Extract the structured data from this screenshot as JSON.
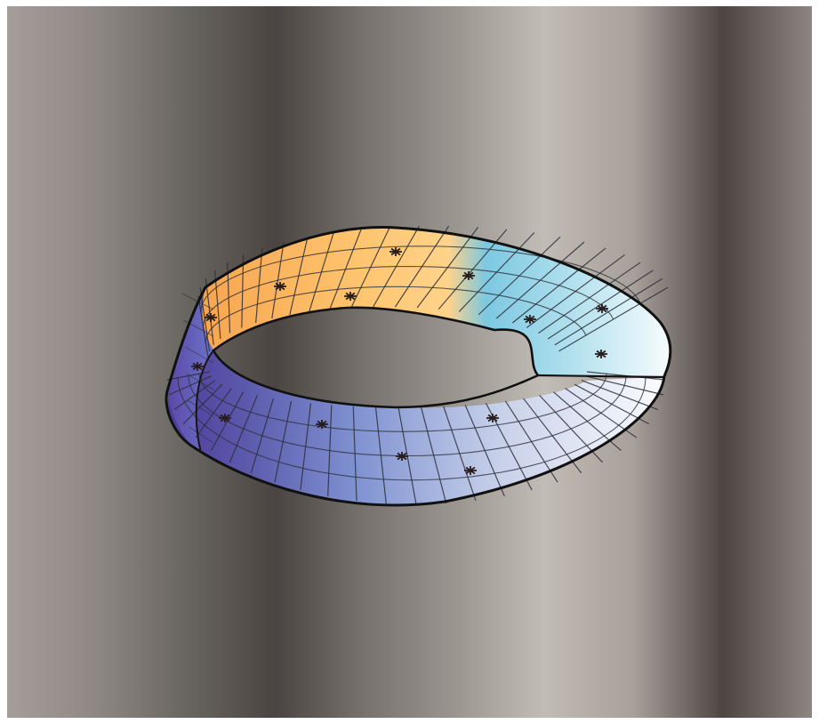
{
  "figure": {
    "subject": "mobius-strip",
    "colors": {
      "backdrop_stops": [
        "#a59d98",
        "#8e8883",
        "#696560",
        "#4a4542",
        "#77726d",
        "#9b9590",
        "#c1bcb5",
        "#a8a09a",
        "#4d4542",
        "#8d8581"
      ],
      "band_inner_orange": "#f4a14f",
      "band_inner_yellow": "#ffc66f",
      "band_inner_cyan": "#7cc8e2",
      "band_inner_light": "#eef7fb",
      "band_outer_violet": "#503b9b",
      "band_outer_blue": "#7e8fd0",
      "band_outer_light": "#f5f7fb",
      "grid_line": "#2d2f38",
      "outline": "#111111",
      "marker": "#271d1d"
    },
    "markers": [
      {
        "name": "marker-1"
      },
      {
        "name": "marker-2"
      },
      {
        "name": "marker-3"
      },
      {
        "name": "marker-4"
      },
      {
        "name": "marker-5"
      },
      {
        "name": "marker-6"
      },
      {
        "name": "marker-7"
      },
      {
        "name": "marker-8"
      },
      {
        "name": "marker-9"
      },
      {
        "name": "marker-10"
      },
      {
        "name": "marker-11"
      },
      {
        "name": "marker-12"
      },
      {
        "name": "marker-13"
      },
      {
        "name": "marker-14"
      }
    ]
  }
}
